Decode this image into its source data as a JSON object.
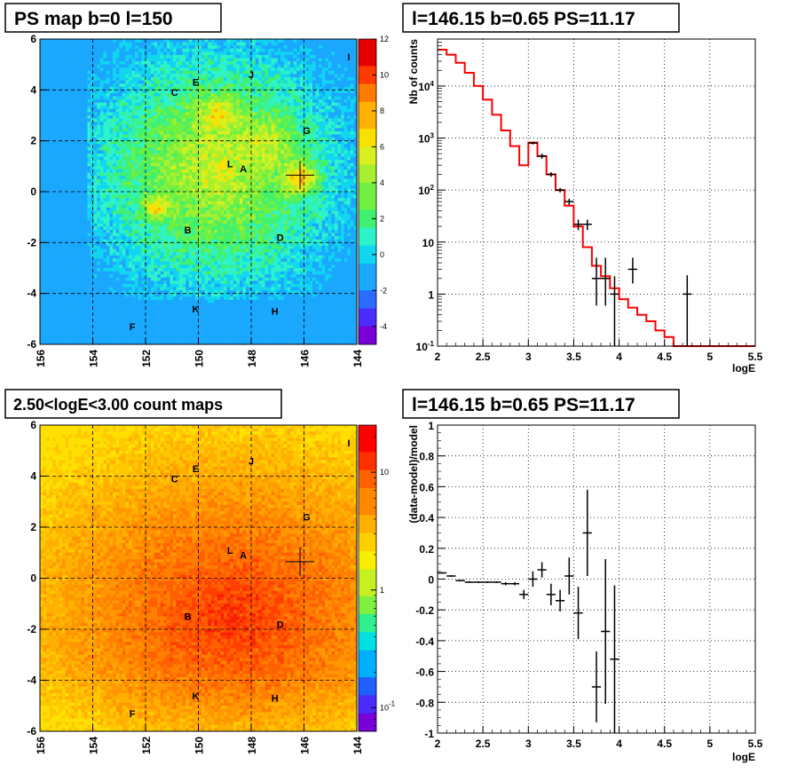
{
  "chart_data": [
    {
      "type": "heatmap",
      "title": "PS map b=0 l=150",
      "x_ticks": [
        "156",
        "154",
        "152",
        "150",
        "148",
        "146",
        "144"
      ],
      "y_ticks": [
        "6",
        "4",
        "2",
        "0",
        "-2",
        "-4",
        "-6"
      ],
      "xlim": [
        156,
        144
      ],
      "ylim": [
        -6,
        6
      ],
      "colorbar_ticks": [
        "12",
        "10",
        "8",
        "6",
        "4",
        "2",
        "0",
        "-2",
        "-4"
      ],
      "colorbar_range": [
        -5,
        12
      ],
      "grid": true,
      "marker": {
        "l": 146.15,
        "b": 0.65
      },
      "sources": [
        {
          "label": "I",
          "l": 144.3,
          "b": 5.3
        },
        {
          "label": "J",
          "l": 148.0,
          "b": 4.6
        },
        {
          "label": "E",
          "l": 150.1,
          "b": 4.3
        },
        {
          "label": "C",
          "l": 150.9,
          "b": 3.9
        },
        {
          "label": "G",
          "l": 145.9,
          "b": 2.4
        },
        {
          "label": "L",
          "l": 148.8,
          "b": 1.1
        },
        {
          "label": "A",
          "l": 148.3,
          "b": 0.9
        },
        {
          "label": "B",
          "l": 150.4,
          "b": -1.5
        },
        {
          "label": "D",
          "l": 146.9,
          "b": -1.8
        },
        {
          "label": "K",
          "l": 150.1,
          "b": -4.6
        },
        {
          "label": "H",
          "l": 147.1,
          "b": -4.7
        },
        {
          "label": "F",
          "l": 152.5,
          "b": -5.3
        }
      ]
    },
    {
      "type": "line",
      "title": "l=146.15 b=0.65 PS=11.17",
      "xlabel": "logE",
      "ylabel": "Nb of counts",
      "yscale": "log",
      "xlim": [
        2,
        5.5
      ],
      "ylim": [
        0.1,
        80000
      ],
      "x_ticks": [
        "2",
        "2.5",
        "3",
        "3.5",
        "4",
        "4.5",
        "5",
        "5.5"
      ],
      "y_ticks": [
        "10^{-1}",
        "1",
        "10",
        "10^{2}",
        "10^{3}",
        "10^{4}"
      ],
      "grid": true,
      "model_step": {
        "edges": [
          2.0,
          2.1,
          2.2,
          2.3,
          2.4,
          2.5,
          2.6,
          2.7,
          2.8,
          2.9,
          3.0,
          3.1,
          3.2,
          3.3,
          3.4,
          3.5,
          3.6,
          3.7,
          3.8,
          3.9,
          4.0,
          4.1,
          4.2,
          4.3,
          4.4,
          4.5,
          4.6,
          4.7,
          4.8,
          4.9,
          5.0,
          5.1,
          5.2,
          5.3,
          5.4,
          5.5
        ],
        "values": [
          50000,
          40000,
          28000,
          18000,
          10000,
          5500,
          2800,
          1400,
          700,
          300,
          820,
          450,
          200,
          100,
          50,
          20,
          8,
          3.5,
          2.2,
          1.3,
          0.8,
          0.55,
          0.4,
          0.3,
          0.2,
          0.15,
          0.1,
          0.1,
          0.1,
          0.1,
          0.1,
          0.1,
          0.1,
          0.1,
          0.1
        ],
        "color": "#ff0000"
      },
      "data_points": [
        {
          "x": 3.05,
          "y": 800,
          "xerr": 0.05,
          "ylo": 750,
          "yhi": 850
        },
        {
          "x": 3.15,
          "y": 450,
          "xerr": 0.05,
          "ylo": 400,
          "yhi": 500
        },
        {
          "x": 3.25,
          "y": 200,
          "xerr": 0.05,
          "ylo": 180,
          "yhi": 220
        },
        {
          "x": 3.35,
          "y": 100,
          "xerr": 0.05,
          "ylo": 90,
          "yhi": 110
        },
        {
          "x": 3.45,
          "y": 60,
          "xerr": 0.05,
          "ylo": 52,
          "yhi": 68
        },
        {
          "x": 3.55,
          "y": 22,
          "xerr": 0.05,
          "ylo": 17,
          "yhi": 27
        },
        {
          "x": 3.65,
          "y": 22,
          "xerr": 0.05,
          "ylo": 17,
          "yhi": 27
        },
        {
          "x": 3.75,
          "y": 2,
          "xerr": 0.05,
          "ylo": 0.6,
          "yhi": 5
        },
        {
          "x": 3.85,
          "y": 2,
          "xerr": 0.05,
          "ylo": 0.6,
          "yhi": 5
        },
        {
          "x": 3.95,
          "y": 1,
          "xerr": 0.05,
          "ylo": 0.1,
          "yhi": 2.2
        },
        {
          "x": 4.15,
          "y": 3,
          "xerr": 0.05,
          "ylo": 1.6,
          "yhi": 5
        },
        {
          "x": 4.75,
          "y": 1,
          "xerr": 0.05,
          "ylo": 0.1,
          "yhi": 2.3
        }
      ]
    },
    {
      "type": "heatmap",
      "title": "2.50<logE<3.00 count maps",
      "x_ticks": [
        "156",
        "154",
        "152",
        "150",
        "148",
        "146",
        "144"
      ],
      "y_ticks": [
        "6",
        "4",
        "2",
        "0",
        "-2",
        "-4",
        "-6"
      ],
      "xlim": [
        156,
        144
      ],
      "ylim": [
        -6,
        6
      ],
      "colorbar_ticks": [
        "10",
        "1",
        "10^{-1}"
      ],
      "colorbar_scale": "log",
      "grid": true,
      "marker": {
        "l": 146.15,
        "b": 0.65
      },
      "sources": [
        {
          "label": "I",
          "l": 144.3,
          "b": 5.3
        },
        {
          "label": "J",
          "l": 148.0,
          "b": 4.6
        },
        {
          "label": "E",
          "l": 150.1,
          "b": 4.3
        },
        {
          "label": "C",
          "l": 150.9,
          "b": 3.9
        },
        {
          "label": "G",
          "l": 145.9,
          "b": 2.4
        },
        {
          "label": "L",
          "l": 148.8,
          "b": 1.1
        },
        {
          "label": "A",
          "l": 148.3,
          "b": 0.9
        },
        {
          "label": "B",
          "l": 150.4,
          "b": -1.5
        },
        {
          "label": "D",
          "l": 146.9,
          "b": -1.8
        },
        {
          "label": "K",
          "l": 150.1,
          "b": -4.6
        },
        {
          "label": "H",
          "l": 147.1,
          "b": -4.7
        },
        {
          "label": "F",
          "l": 152.5,
          "b": -5.3
        }
      ]
    },
    {
      "type": "scatter",
      "title": "l=146.15 b=0.65 PS=11.17",
      "xlabel": "logE",
      "ylabel": "(data-model)/model",
      "xlim": [
        2,
        5.5
      ],
      "ylim": [
        -1,
        1
      ],
      "x_ticks": [
        "2",
        "2.5",
        "3",
        "3.5",
        "4",
        "4.5",
        "5",
        "5.5"
      ],
      "y_ticks": [
        "1",
        "0.8",
        "0.6",
        "0.4",
        "0.2",
        "0",
        "-0.2",
        "-0.4",
        "-0.6",
        "-0.8",
        "-1"
      ],
      "grid": true,
      "points": [
        {
          "x": 2.05,
          "y": 0.04,
          "xerr": 0.05,
          "yerr": 0.005
        },
        {
          "x": 2.15,
          "y": 0.02,
          "xerr": 0.05,
          "yerr": 0.005
        },
        {
          "x": 2.25,
          "y": -0.01,
          "xerr": 0.05,
          "yerr": 0.005
        },
        {
          "x": 2.35,
          "y": -0.02,
          "xerr": 0.05,
          "yerr": 0.005
        },
        {
          "x": 2.45,
          "y": -0.02,
          "xerr": 0.05,
          "yerr": 0.005
        },
        {
          "x": 2.55,
          "y": -0.02,
          "xerr": 0.05,
          "yerr": 0.005
        },
        {
          "x": 2.65,
          "y": -0.02,
          "xerr": 0.05,
          "yerr": 0.005
        },
        {
          "x": 2.75,
          "y": -0.03,
          "xerr": 0.05,
          "yerr": 0.01
        },
        {
          "x": 2.85,
          "y": -0.03,
          "xerr": 0.05,
          "yerr": 0.01
        },
        {
          "x": 2.95,
          "y": -0.1,
          "xerr": 0.05,
          "yerr": 0.03
        },
        {
          "x": 3.05,
          "y": 0.0,
          "xerr": 0.05,
          "yerr": 0.05
        },
        {
          "x": 3.15,
          "y": 0.06,
          "xerr": 0.05,
          "yerr": 0.05
        },
        {
          "x": 3.25,
          "y": -0.1,
          "xerr": 0.05,
          "yerr": 0.07
        },
        {
          "x": 3.35,
          "y": -0.14,
          "xerr": 0.05,
          "yerr": 0.07
        },
        {
          "x": 3.45,
          "y": 0.02,
          "xerr": 0.05,
          "yerr": 0.12
        },
        {
          "x": 3.55,
          "y": -0.22,
          "xerr": 0.05,
          "yerr": 0.17
        },
        {
          "x": 3.65,
          "y": 0.3,
          "xerr": 0.05,
          "yerr": 0.28
        },
        {
          "x": 3.75,
          "y": -0.7,
          "xerr": 0.05,
          "yerr": 0.23
        },
        {
          "x": 3.85,
          "y": -0.34,
          "xerr": 0.05,
          "yerr": 0.47
        },
        {
          "x": 3.95,
          "y": -0.52,
          "xerr": 0.05,
          "yerr": 0.48
        }
      ]
    }
  ]
}
